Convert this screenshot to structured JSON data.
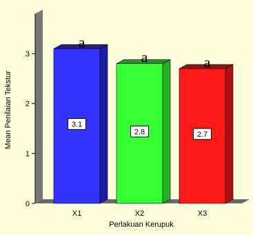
{
  "chart_data": {
    "type": "bar",
    "title": "",
    "xlabel": "Perlakuan Kerupuk",
    "ylabel": "Mean Penilaian Tekstur",
    "categories": [
      "X1",
      "X2",
      "X3"
    ],
    "values": [
      3.1,
      2.8,
      2.7
    ],
    "value_labels": [
      "3.1",
      "2.8",
      "2.7"
    ],
    "significance_letters": [
      "a",
      "a",
      "a"
    ],
    "ylim": [
      0,
      3.8
    ],
    "yticks": [
      0,
      1,
      2,
      3
    ],
    "ytick_labels": [
      "0",
      "1",
      "2",
      "3"
    ],
    "grid": false,
    "style": "3d",
    "colors": {
      "background": "#fdfcdc",
      "wall": "#777777",
      "floor": "#686868",
      "bars": [
        {
          "front": "#3333ff",
          "top": "#22227a",
          "side": "#1c1ca8"
        },
        {
          "front": "#33ff33",
          "top": "#2e8a2e",
          "side": "#24b224"
        },
        {
          "front": "#ff1a1a",
          "top": "#8a1818",
          "side": "#b01010"
        }
      ]
    }
  }
}
